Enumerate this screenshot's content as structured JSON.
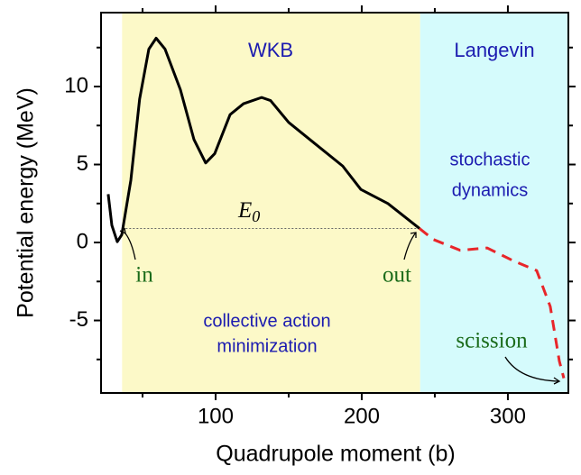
{
  "chart_data": {
    "type": "line",
    "xlabel": "Quadrupole moment (b)",
    "ylabel": "Potential energy (MeV)",
    "xlim": [
      21.6,
      341.4
    ],
    "ylim": [
      -9.65,
      14.74
    ],
    "xticks": [
      100,
      200,
      300
    ],
    "yticks": [
      -5,
      0,
      5,
      10
    ],
    "xticks_minor": [
      50,
      150,
      250
    ],
    "yticks_minor": [
      -7.5,
      -2.5,
      2.5,
      7.5,
      12.5
    ],
    "regions": [
      {
        "x": [
          36,
          240
        ],
        "color": "#fcf9c8"
      },
      {
        "x": [
          240,
          341.4
        ],
        "color": "#d5fbfc"
      }
    ],
    "region_labels": [
      "WKB",
      "Langevin"
    ],
    "annotations": [
      "stochastic",
      "dynamics",
      "collective action",
      "minimization",
      "in",
      "out",
      "scission"
    ],
    "e0_label": {
      "base": "E",
      "sub": "0"
    },
    "e0_line": {
      "y": 0.9,
      "x": [
        36,
        240
      ]
    },
    "series": [
      {
        "color": "#000000",
        "dash": false,
        "x": [
          26.5,
          29,
          32.7,
          35.8,
          42,
          48,
          54.3,
          59.3,
          65.4,
          75.9,
          85.2,
          93.2,
          99.4,
          109.9,
          119.1,
          131.5,
          137.6,
          150,
          168.5,
          187,
          199.4,
          217.9,
          239.5
        ],
        "values": [
          3.1,
          1.1,
          0.05,
          0.5,
          4,
          9.2,
          12.4,
          13.1,
          12.4,
          9.8,
          6.6,
          5.1,
          5.7,
          8.2,
          8.9,
          9.3,
          9.1,
          7.7,
          6.3,
          4.9,
          3.4,
          2.5,
          0.9
        ]
      },
      {
        "color": "#e8262a",
        "dash": true,
        "x": [
          239.5,
          248.8,
          267.3,
          285.8,
          304.3,
          319.7,
          329,
          335.2,
          338.3
        ],
        "values": [
          0.9,
          0.2,
          -0.5,
          -0.35,
          -1.2,
          -1.8,
          -4.1,
          -7.6,
          -8.7
        ]
      }
    ]
  }
}
